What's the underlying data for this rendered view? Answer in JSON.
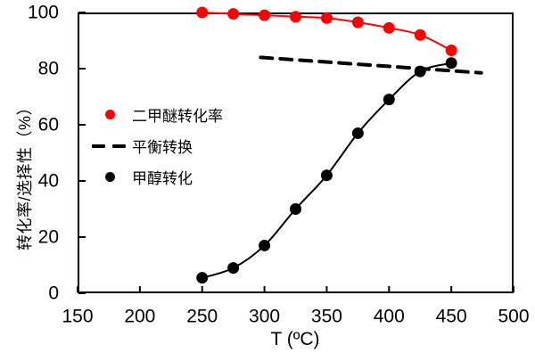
{
  "chart_data": {
    "type": "line",
    "title": "",
    "xlabel": "T (ºC)",
    "ylabel": "转化率/选择性（%）",
    "xlim": [
      150,
      500
    ],
    "ylim": [
      0,
      100
    ],
    "xticks": [
      150,
      200,
      250,
      300,
      350,
      400,
      450,
      500
    ],
    "yticks": [
      0,
      20,
      40,
      60,
      80,
      100
    ],
    "grid": false,
    "legend_position": "inside-upper-left",
    "series": [
      {
        "name": "二甲醚转化率",
        "style": "scatter-line",
        "marker": "circle",
        "color": "#ff0000",
        "x": [
          250,
          275,
          300,
          325,
          350,
          375,
          400,
          425,
          450
        ],
        "values": [
          100,
          99.5,
          99,
          98.5,
          98,
          96.5,
          94.5,
          92,
          86.5
        ]
      },
      {
        "name": "平衡转换",
        "style": "dashed-line",
        "marker": "none",
        "color": "#000000",
        "x": [
          297,
          474
        ],
        "values": [
          84,
          78.5
        ]
      },
      {
        "name": "甲醇转化",
        "style": "scatter-line",
        "marker": "circle",
        "color": "#000000",
        "x": [
          250,
          275,
          300,
          325,
          350,
          375,
          400,
          425,
          450
        ],
        "values": [
          5.5,
          9,
          17,
          30,
          42,
          57,
          69,
          79,
          82
        ]
      }
    ]
  },
  "colors": {
    "background": "#ffffff",
    "axis": "#000000",
    "red_series": "#ff0000",
    "black_series": "#000000"
  }
}
